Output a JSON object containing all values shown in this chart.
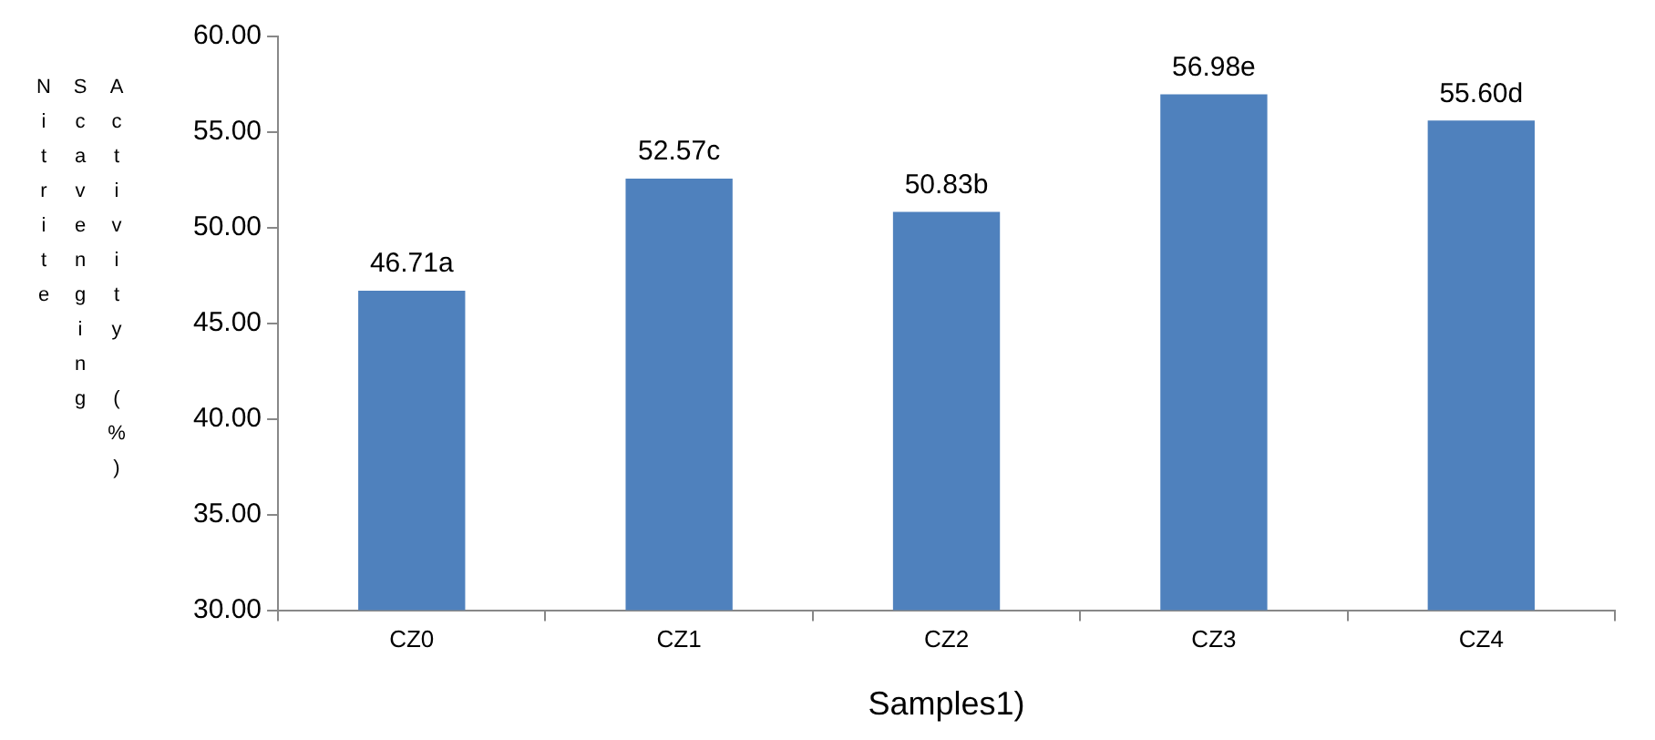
{
  "chart_data": {
    "type": "bar",
    "xlabel": "Samples1)",
    "ylabel": "Nitrite Scavenging Activity (%)",
    "categories": [
      "CZ0",
      "CZ1",
      "CZ2",
      "CZ3",
      "CZ4"
    ],
    "values": [
      46.71,
      52.57,
      50.83,
      56.98,
      55.6
    ],
    "value_labels": [
      "46.71a",
      "52.57c",
      "50.83b",
      "56.98e",
      "55.60d"
    ],
    "color": "#4f81bd",
    "ylim": [
      30,
      60
    ],
    "yticks": [
      {
        "value": 30,
        "label": "30.00"
      },
      {
        "value": 35,
        "label": "35.00"
      },
      {
        "value": 40,
        "label": "40.00"
      },
      {
        "value": 45,
        "label": "45.00"
      },
      {
        "value": 50,
        "label": "50.00"
      },
      {
        "value": 55,
        "label": "55.00"
      },
      {
        "value": 60,
        "label": "60.00"
      }
    ],
    "grid": false,
    "legend": false
  }
}
